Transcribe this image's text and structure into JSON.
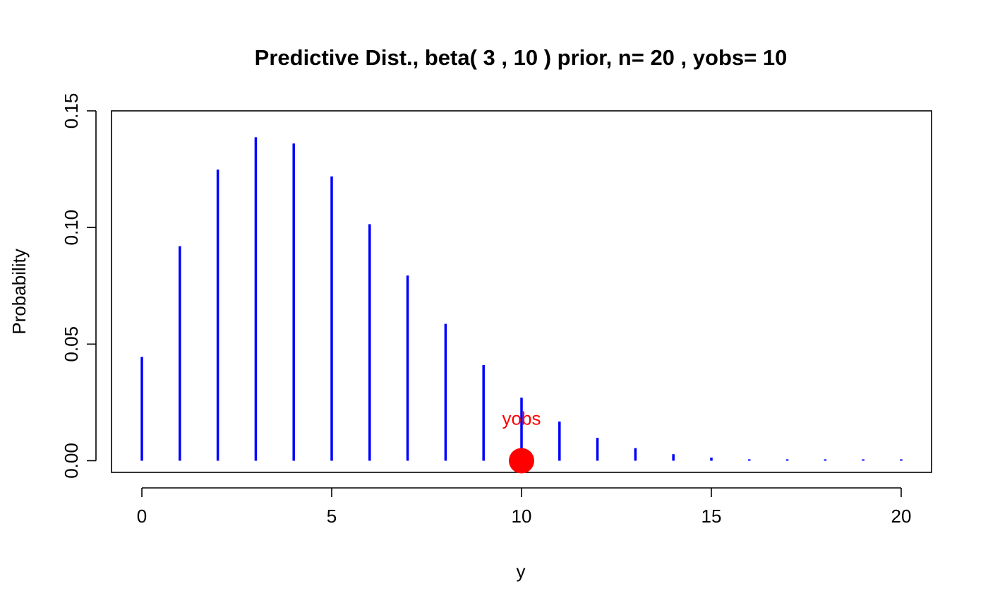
{
  "chart_data": {
    "type": "bar",
    "title": "Predictive Dist., beta( 3 , 10 ) prior, n= 20 , yobs= 10",
    "xlabel": "y",
    "ylabel": "Probability",
    "x": [
      0,
      1,
      2,
      3,
      4,
      5,
      6,
      7,
      8,
      9,
      10,
      11,
      12,
      13,
      14,
      15,
      16,
      17,
      18,
      19,
      20
    ],
    "values": [
      0.0445,
      0.092,
      0.1248,
      0.1387,
      0.136,
      0.1219,
      0.1014,
      0.0794,
      0.0587,
      0.041,
      0.027,
      0.0168,
      0.0098,
      0.0054,
      0.0028,
      0.0013,
      0.0006,
      0.0002,
      0.0001,
      2e-05,
      2e-06
    ],
    "xlim": [
      -0.8,
      20.8
    ],
    "ylim": [
      -0.005,
      0.15
    ],
    "xticks": [
      0,
      5,
      10,
      15,
      20
    ],
    "yticks": [
      0.0,
      0.05,
      0.1,
      0.15
    ],
    "xtick_labels": [
      "0",
      "5",
      "10",
      "15",
      "20"
    ],
    "ytick_labels": [
      "0.00",
      "0.05",
      "0.10",
      "0.15"
    ],
    "bar_color": "#0000ff",
    "grid": false,
    "observed": {
      "x": 10,
      "y": 0,
      "label": "yobs",
      "color": "#ff0000"
    }
  }
}
